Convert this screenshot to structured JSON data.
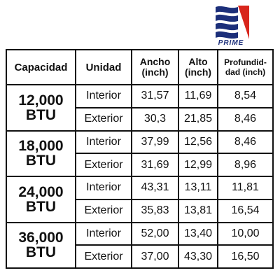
{
  "brand": {
    "name": "PRIME",
    "colors": {
      "blue": "#1c2f7a",
      "red": "#d8261c"
    }
  },
  "table": {
    "headers": {
      "capacidad": "Capacidad",
      "unidad": "Unidad",
      "ancho": [
        "Ancho",
        "(inch)"
      ],
      "alto": [
        "Alto",
        "(inch)"
      ],
      "profundidad": [
        "Profundid-",
        "dad (inch)"
      ]
    },
    "groups": [
      {
        "capacity": [
          "12,000",
          "BTU"
        ],
        "rows": [
          {
            "unit": "Interior",
            "ancho": "31,57",
            "alto": "11,69",
            "prof": "8,54"
          },
          {
            "unit": "Exterior",
            "ancho": "30,3",
            "alto": "21,85",
            "prof": "8,46"
          }
        ]
      },
      {
        "capacity": [
          "18,000",
          "BTU"
        ],
        "rows": [
          {
            "unit": "Interior",
            "ancho": "37,99",
            "alto": "12,56",
            "prof": "8,46"
          },
          {
            "unit": "Exterior",
            "ancho": "31,69",
            "alto": "12,99",
            "prof": "8,96"
          }
        ]
      },
      {
        "capacity": [
          "24,000",
          "BTU"
        ],
        "rows": [
          {
            "unit": "Interior",
            "ancho": "43,31",
            "alto": "13,11",
            "prof": "11,81"
          },
          {
            "unit": "Exterior",
            "ancho": "35,83",
            "alto": "13,81",
            "prof": "16,54"
          }
        ]
      },
      {
        "capacity": [
          "36,000",
          "BTU"
        ],
        "rows": [
          {
            "unit": "Interior",
            "ancho": "52,00",
            "alto": "13,40",
            "prof": "10,00"
          },
          {
            "unit": "Exterior",
            "ancho": "37,00",
            "alto": "43,30",
            "prof": "16,50"
          }
        ]
      }
    ]
  }
}
